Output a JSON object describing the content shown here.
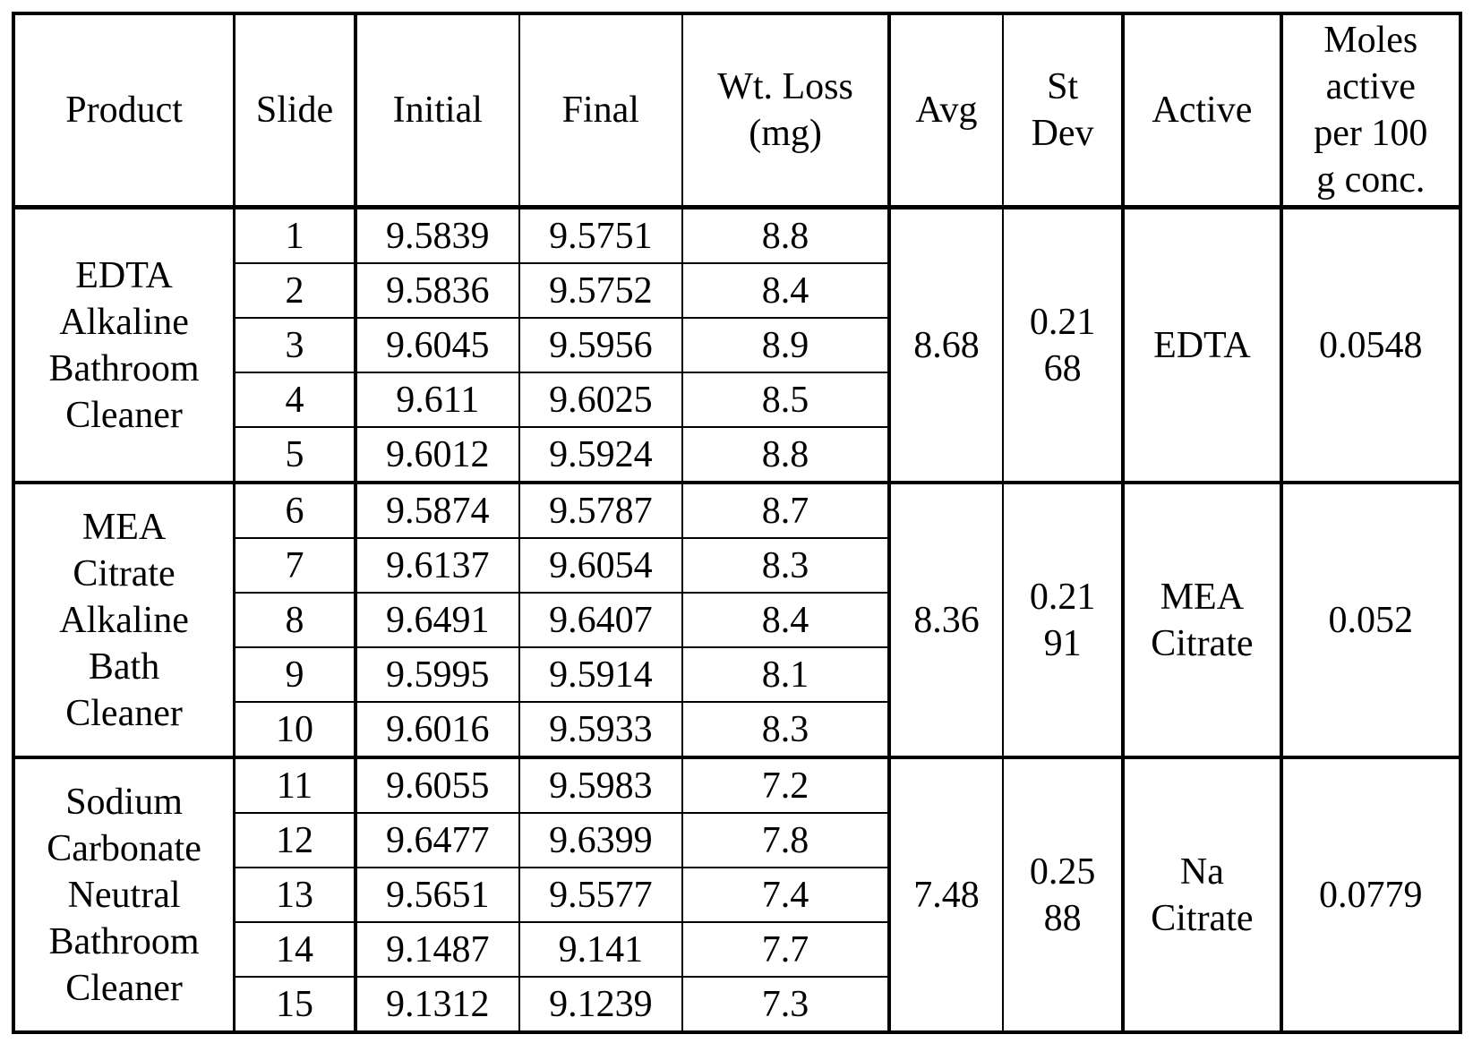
{
  "table": {
    "headers": {
      "product": "Product",
      "slide": "Slide",
      "initial": "Initial",
      "final": "Final",
      "wt_loss": "Wt. Loss\n(mg)",
      "avg": "Avg",
      "st_dev": "St\nDev",
      "active": "Active",
      "moles": "Moles\nactive\nper 100\ng conc."
    },
    "groups": [
      {
        "product": "EDTA\nAlkaline\nBathroom\nCleaner",
        "avg": "8.68",
        "st_dev": "0.21\n68",
        "active": "EDTA",
        "moles": "0.0548",
        "rows": [
          {
            "slide": "1",
            "initial": "9.5839",
            "final": "9.5751",
            "wt_loss": "8.8"
          },
          {
            "slide": "2",
            "initial": "9.5836",
            "final": "9.5752",
            "wt_loss": "8.4"
          },
          {
            "slide": "3",
            "initial": "9.6045",
            "final": "9.5956",
            "wt_loss": "8.9"
          },
          {
            "slide": "4",
            "initial": "9.611",
            "final": "9.6025",
            "wt_loss": "8.5"
          },
          {
            "slide": "5",
            "initial": "9.6012",
            "final": "9.5924",
            "wt_loss": "8.8"
          }
        ]
      },
      {
        "product": "MEA\nCitrate\nAlkaline\nBath\nCleaner",
        "avg": "8.36",
        "st_dev": "0.21\n91",
        "active": "MEA\nCitrate",
        "moles": "0.052",
        "rows": [
          {
            "slide": "6",
            "initial": "9.5874",
            "final": "9.5787",
            "wt_loss": "8.7"
          },
          {
            "slide": "7",
            "initial": "9.6137",
            "final": "9.6054",
            "wt_loss": "8.3"
          },
          {
            "slide": "8",
            "initial": "9.6491",
            "final": "9.6407",
            "wt_loss": "8.4"
          },
          {
            "slide": "9",
            "initial": "9.5995",
            "final": "9.5914",
            "wt_loss": "8.1"
          },
          {
            "slide": "10",
            "initial": "9.6016",
            "final": "9.5933",
            "wt_loss": "8.3"
          }
        ]
      },
      {
        "product": "Sodium\nCarbonate\nNeutral\nBathroom\nCleaner",
        "avg": "7.48",
        "st_dev": "0.25\n88",
        "active": "Na\nCitrate",
        "moles": "0.0779",
        "rows": [
          {
            "slide": "11",
            "initial": "9.6055",
            "final": "9.5983",
            "wt_loss": "7.2"
          },
          {
            "slide": "12",
            "initial": "9.6477",
            "final": "9.6399",
            "wt_loss": "7.8"
          },
          {
            "slide": "13",
            "initial": "9.5651",
            "final": "9.5577",
            "wt_loss": "7.4"
          },
          {
            "slide": "14",
            "initial": "9.1487",
            "final": "9.141",
            "wt_loss": "7.7"
          },
          {
            "slide": "15",
            "initial": "9.1312",
            "final": "9.1239",
            "wt_loss": "7.3"
          }
        ]
      }
    ]
  }
}
